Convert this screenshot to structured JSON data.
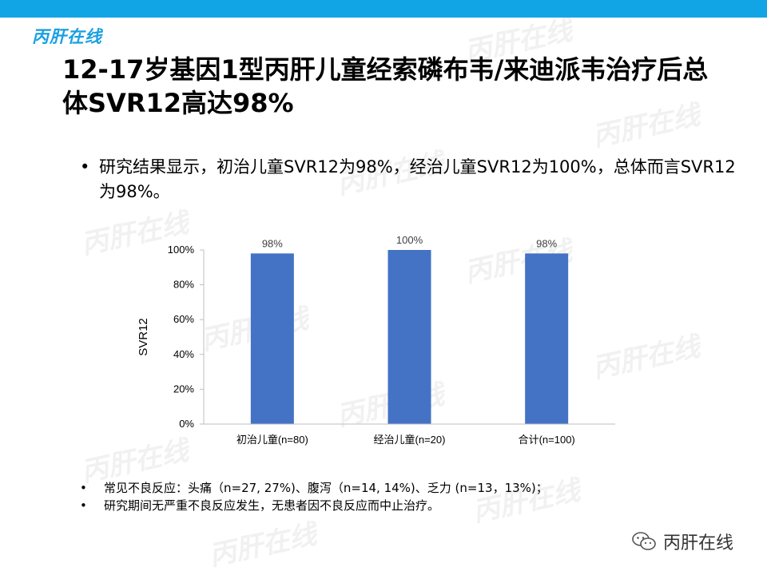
{
  "logo": "丙肝在线",
  "watermark": "丙肝在线",
  "title": "12-17岁基因1型丙肝儿童经索磷布韦/来迪派韦治疗后总体SVR12高达98%",
  "main_bullet": "研究结果显示，初治儿童SVR12为98%，经治儿童SVR12为100%，总体而言SVR12为98%。",
  "notes": [
    "常见不良反应：头痛（n=27, 27%)、腹泻（n=14, 14%)、乏力 (n=13，13%)；",
    "研究期间无严重不良反应发生，无患者因不良反应而中止治疗。"
  ],
  "wechat_label": "丙肝在线",
  "icons": {
    "wechat": "wechat-icon"
  },
  "chart_data": {
    "type": "bar",
    "categories": [
      "初治儿童(n=80)",
      "经治儿童(n=20)",
      "合计(n=100)"
    ],
    "values": [
      98,
      100,
      98
    ],
    "value_labels": [
      "98%",
      "100%",
      "98%"
    ],
    "ylabel": "SVR12",
    "ylim": [
      0,
      100
    ],
    "yticks": [
      0,
      20,
      40,
      60,
      80,
      100
    ],
    "ytick_labels": [
      "0%",
      "20%",
      "40%",
      "60%",
      "80%",
      "100%"
    ],
    "bar_color": "#4472c4",
    "grid": false,
    "legend": "none"
  }
}
